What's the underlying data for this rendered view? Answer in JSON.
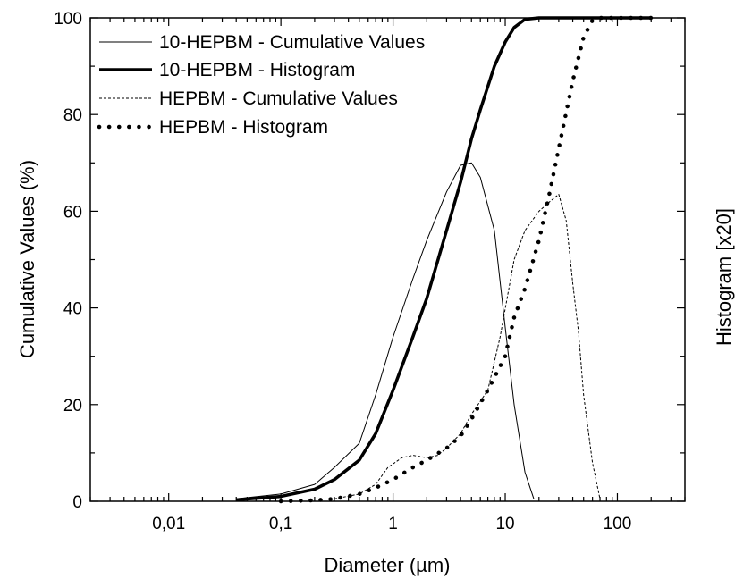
{
  "chart_data": {
    "type": "line",
    "xlabel": "Diameter (µm)",
    "ylabel": "Cumulative Values (%)",
    "y2label": "Histogram [x20]",
    "x_scale": "log",
    "xlim": [
      0.002,
      400
    ],
    "ylim": [
      0,
      100
    ],
    "x_ticks": [
      {
        "value": 0.01,
        "label": "0,01"
      },
      {
        "value": 0.1,
        "label": "0,1"
      },
      {
        "value": 1,
        "label": "1"
      },
      {
        "value": 10,
        "label": "10"
      },
      {
        "value": 100,
        "label": "100"
      }
    ],
    "y_ticks": [
      {
        "value": 0,
        "label": "0"
      },
      {
        "value": 20,
        "label": "20"
      },
      {
        "value": 40,
        "label": "40"
      },
      {
        "value": 60,
        "label": "60"
      },
      {
        "value": 80,
        "label": "80"
      },
      {
        "value": 100,
        "label": "100"
      }
    ],
    "grid": false,
    "legend_position": "top-left",
    "series": [
      {
        "name": "10-HEPBM - Cumulative Values",
        "style": "thin-solid",
        "color": "#000000",
        "x": [
          0.04,
          0.1,
          0.2,
          0.3,
          0.5,
          0.7,
          1,
          1.5,
          2,
          3,
          4,
          5,
          6,
          8,
          10,
          12,
          15,
          18
        ],
        "y": [
          0.5,
          1.5,
          3.5,
          7,
          12,
          22,
          34,
          46,
          54,
          64,
          69.5,
          70,
          67,
          56,
          36,
          20,
          6,
          0.5
        ]
      },
      {
        "name": "10-HEPBM - Histogram",
        "style": "thick-solid",
        "color": "#000000",
        "x": [
          0.04,
          0.1,
          0.2,
          0.3,
          0.5,
          0.7,
          1,
          1.5,
          2,
          3,
          4,
          5,
          6,
          8,
          10,
          12,
          15,
          20,
          30,
          200
        ],
        "y": [
          0.3,
          1,
          2.5,
          4.5,
          8.5,
          14,
          23,
          34,
          42,
          56,
          66,
          75,
          81,
          90,
          95,
          98,
          99.7,
          100,
          100,
          100
        ]
      },
      {
        "name": "HEPBM - Cumulative Values",
        "style": "thin-dashed",
        "color": "#000000",
        "x": [
          0.3,
          0.5,
          0.7,
          0.9,
          1.2,
          1.5,
          2,
          2.5,
          3,
          4,
          5,
          7,
          9,
          12,
          15,
          20,
          25,
          30,
          35,
          40,
          45,
          50,
          60,
          70
        ],
        "y": [
          0.5,
          1.5,
          3.5,
          7,
          9,
          9.5,
          9,
          9.5,
          11,
          14,
          18,
          23,
          34,
          50,
          56,
          60,
          62,
          63.5,
          58,
          45,
          35,
          22,
          8,
          0.5
        ]
      },
      {
        "name": "HEPBM - Histogram",
        "style": "thick-dotted",
        "color": "#000000",
        "x": [
          0.1,
          0.2,
          0.3,
          0.5,
          0.7,
          1,
          1.5,
          2,
          3,
          4,
          5,
          7,
          10,
          12,
          15,
          20,
          25,
          30,
          40,
          50,
          60,
          70,
          100,
          200
        ],
        "y": [
          0,
          0.2,
          0.5,
          1.5,
          2.8,
          4.5,
          7,
          8.5,
          11,
          13.5,
          17,
          23,
          30,
          38,
          44,
          54,
          64,
          73,
          87,
          96,
          99.5,
          100,
          100,
          100
        ]
      }
    ]
  }
}
